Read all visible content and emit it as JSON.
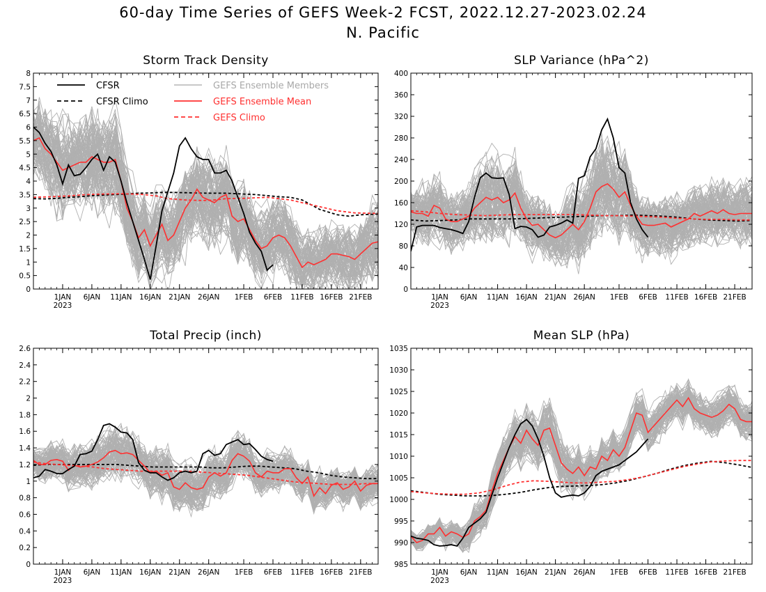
{
  "header": {
    "title": "60-day Time Series of GEFS Week-2 FCST, 2022.12.27-2023.02.24",
    "subtitle": "N. Pacific"
  },
  "legend": {
    "cfsr": "CFSR",
    "cfsr_climo": "CFSR Climo",
    "members": "GEFS Ensemble Members",
    "mean": "GEFS Ensemble Mean",
    "gefs_climo": "GEFS Climo"
  },
  "colors": {
    "cfsr": "#000000",
    "members": "#a8a8a8",
    "mean": "#ff3030",
    "gefs_climo": "#ff3030",
    "cfsr_climo": "#000000"
  },
  "x_axis": {
    "start": "2022-12-27",
    "end": "2023-02-24",
    "tick_labels": [
      "1JAN",
      "6JAN",
      "11JAN",
      "16JAN",
      "21JAN",
      "26JAN",
      "1FEB",
      "6FEB",
      "11FEB",
      "16FEB",
      "21FEB"
    ],
    "year_label": "2023"
  },
  "chart_data": [
    {
      "type": "line",
      "title": "Storm Track Density",
      "ylim": [
        0,
        8
      ],
      "yticks": [
        "0",
        "0.5",
        "1",
        "1.5",
        "2",
        "2.5",
        "3",
        "3.5",
        "4",
        "4.5",
        "5",
        "5.5",
        "6",
        "6.5",
        "7",
        "7.5",
        "8"
      ],
      "cfsr_dates": [
        "2022-12-27",
        "2022-12-28",
        "2022-12-29",
        "2022-12-30",
        "2022-12-31",
        "2023-01-01",
        "2023-01-02",
        "2023-01-03",
        "2023-01-04",
        "2023-01-05",
        "2023-01-06",
        "2023-01-07",
        "2023-01-08",
        "2023-01-09",
        "2023-01-10",
        "2023-01-11",
        "2023-01-12",
        "2023-01-13",
        "2023-01-14",
        "2023-01-15",
        "2023-01-16",
        "2023-01-17",
        "2023-01-18",
        "2023-01-19",
        "2023-01-20",
        "2023-01-21",
        "2023-01-22",
        "2023-01-23",
        "2023-01-24",
        "2023-01-25",
        "2023-01-26",
        "2023-01-27",
        "2023-01-28",
        "2023-01-29",
        "2023-01-30",
        "2023-01-31",
        "2023-02-01",
        "2023-02-02",
        "2023-02-03",
        "2023-02-04",
        "2023-02-05",
        "2023-02-06",
        "2023-02-07",
        "2023-02-08"
      ],
      "cfsr": [
        6.0,
        5.8,
        5.4,
        5.1,
        4.6,
        3.9,
        4.6,
        4.2,
        4.25,
        4.5,
        4.8,
        5.0,
        4.4,
        4.9,
        4.7,
        4.0,
        3.2,
        2.5,
        1.8,
        1.1,
        0.35,
        1.6,
        2.9,
        3.6,
        4.3,
        5.3,
        5.6,
        5.2,
        4.9,
        4.8,
        4.8,
        4.3,
        4.3,
        4.4,
        4.0,
        3.4,
        2.8,
        2.1,
        1.7,
        1.4,
        0.7,
        0.9,
        null,
        null
      ],
      "mean_dates": [
        "2022-12-27",
        "2022-12-28",
        "2022-12-29",
        "2022-12-30",
        "2022-12-31",
        "2023-01-01",
        "2023-01-02",
        "2023-01-03",
        "2023-01-04",
        "2023-01-05",
        "2023-01-06",
        "2023-01-07",
        "2023-01-08",
        "2023-01-09",
        "2023-01-10",
        "2023-01-11",
        "2023-01-12",
        "2023-01-13",
        "2023-01-14",
        "2023-01-15",
        "2023-01-16",
        "2023-01-17",
        "2023-01-18",
        "2023-01-19",
        "2023-01-20",
        "2023-01-21",
        "2023-01-22",
        "2023-01-23",
        "2023-01-24",
        "2023-01-25",
        "2023-01-26",
        "2023-01-27",
        "2023-01-28",
        "2023-01-29",
        "2023-01-30",
        "2023-01-31",
        "2023-02-01",
        "2023-02-02",
        "2023-02-03",
        "2023-02-04",
        "2023-02-05",
        "2023-02-06",
        "2023-02-07",
        "2023-02-08",
        "2023-02-09",
        "2023-02-10",
        "2023-02-11",
        "2023-02-12",
        "2023-02-13",
        "2023-02-14",
        "2023-02-15",
        "2023-02-16",
        "2023-02-17",
        "2023-02-18",
        "2023-02-19",
        "2023-02-20",
        "2023-02-21",
        "2023-02-22",
        "2023-02-23",
        "2023-02-24"
      ],
      "mean": [
        5.5,
        5.6,
        5.2,
        5.0,
        4.7,
        4.4,
        4.5,
        4.6,
        4.7,
        4.7,
        4.9,
        4.8,
        4.7,
        4.7,
        4.8,
        4.0,
        3.0,
        2.5,
        1.9,
        2.2,
        1.6,
        2.0,
        2.4,
        1.8,
        2.0,
        2.5,
        3.0,
        3.3,
        3.7,
        3.4,
        3.3,
        3.2,
        3.4,
        3.5,
        2.7,
        2.5,
        2.6,
        2.2,
        1.8,
        1.5,
        1.6,
        1.9,
        2.0,
        1.9,
        1.6,
        1.2,
        0.8,
        1.0,
        0.9,
        1.0,
        1.1,
        1.3,
        1.3,
        1.25,
        1.2,
        1.1,
        1.3,
        1.5,
        1.7,
        1.75
      ],
      "cfsr_climo": [
        3.35,
        3.34,
        3.36,
        3.4,
        3.42,
        3.46,
        3.48,
        3.5,
        3.52,
        3.55,
        3.56,
        3.58,
        3.58,
        3.57,
        3.56,
        3.55,
        3.55,
        3.52,
        3.5,
        3.46,
        3.42,
        3.4,
        3.3,
        2.95,
        2.75,
        2.7,
        2.75,
        2.78
      ],
      "cfsr_climo_dates": [
        "2022-12-27",
        "2022-12-29",
        "2022-12-31",
        "2023-01-02",
        "2023-01-04",
        "2023-01-06",
        "2023-01-08",
        "2023-01-10",
        "2023-01-12",
        "2023-01-14",
        "2023-01-16",
        "2023-01-18",
        "2023-01-20",
        "2023-01-22",
        "2023-01-24",
        "2023-01-26",
        "2023-01-29",
        "2023-02-01",
        "2023-02-03",
        "2023-02-05",
        "2023-02-07",
        "2023-02-09",
        "2023-02-11",
        "2023-02-14",
        "2023-02-17",
        "2023-02-19",
        "2023-02-21",
        "2023-02-24"
      ],
      "gefs_climo": [
        3.4,
        3.42,
        3.45,
        3.5,
        3.52,
        3.53,
        3.52,
        3.5,
        3.45,
        3.35,
        3.3,
        3.28,
        3.3,
        3.35,
        3.36,
        3.38,
        3.4,
        3.35,
        3.3,
        3.2,
        3.05,
        2.9,
        2.82,
        2.8
      ],
      "gefs_climo_dates": [
        "2022-12-27",
        "2022-12-30",
        "2023-01-02",
        "2023-01-05",
        "2023-01-08",
        "2023-01-11",
        "2023-01-13",
        "2023-01-15",
        "2023-01-17",
        "2023-01-19",
        "2023-01-22",
        "2023-01-25",
        "2023-01-27",
        "2023-01-29",
        "2023-02-01",
        "2023-02-03",
        "2023-02-05",
        "2023-02-07",
        "2023-02-09",
        "2023-02-11",
        "2023-02-14",
        "2023-02-17",
        "2023-02-20",
        "2023-02-24"
      ],
      "members_spread": [
        2.4,
        2.6,
        2.6,
        2.6,
        2.6,
        2.8,
        2.9,
        2.8,
        2.8,
        2.9,
        2.9,
        3.0,
        3.0,
        2.9,
        2.9,
        2.7,
        2.6,
        2.5,
        2.4,
        2.5,
        2.3,
        2.4,
        2.4,
        2.3,
        2.4,
        2.6,
        2.6,
        2.6,
        2.7,
        2.6,
        2.6,
        2.6,
        2.6,
        2.6,
        2.6,
        2.6,
        2.5,
        2.4,
        2.2,
        2.1,
        2.1,
        2.2,
        2.2,
        2.2,
        2.1,
        1.9,
        1.6,
        1.7,
        1.7,
        1.7,
        1.8,
        1.9,
        1.9,
        1.9,
        1.9,
        1.8,
        2.0,
        2.1,
        2.2,
        2.3
      ]
    },
    {
      "type": "line",
      "title": "SLP Variance (hPa^2)",
      "ylim": [
        0,
        400
      ],
      "yticks": [
        "0",
        "40",
        "80",
        "120",
        "160",
        "200",
        "240",
        "280",
        "320",
        "360",
        "400"
      ],
      "cfsr": [
        70,
        115,
        118,
        118,
        118,
        114,
        112,
        110,
        107,
        103,
        125,
        170,
        206,
        215,
        206,
        205,
        206,
        175,
        112,
        116,
        115,
        110,
        96,
        100,
        115,
        118,
        122,
        128,
        122,
        205,
        210,
        245,
        260,
        295,
        315,
        280,
        225,
        215,
        160,
        130,
        110,
        96,
        null,
        null
      ],
      "mean": [
        143,
        140,
        140,
        135,
        155,
        150,
        130,
        125,
        125,
        130,
        135,
        150,
        160,
        170,
        165,
        170,
        160,
        165,
        178,
        150,
        130,
        118,
        120,
        110,
        100,
        95,
        100,
        110,
        120,
        110,
        125,
        150,
        180,
        190,
        195,
        185,
        170,
        180,
        155,
        135,
        120,
        118,
        118,
        120,
        122,
        115,
        120,
        125,
        130,
        140,
        135,
        140,
        145,
        140,
        147,
        140,
        138,
        140,
        140,
        140
      ],
      "cfsr_climo": [
        128,
        126,
        127,
        128,
        130,
        130,
        130,
        130,
        131,
        132,
        133,
        134,
        135,
        136,
        136,
        137,
        136,
        135,
        133,
        130,
        128,
        127,
        126,
        127
      ],
      "gefs_climo": [
        145,
        143,
        140,
        138,
        137,
        136,
        137,
        138,
        138,
        138,
        138,
        138,
        137,
        136,
        136,
        135,
        134,
        133,
        131,
        130,
        129,
        129,
        128,
        128
      ],
      "members_spread": [
        70,
        75,
        80,
        90,
        90,
        95,
        95,
        85,
        80,
        80,
        90,
        110,
        120,
        125,
        120,
        120,
        110,
        110,
        115,
        100,
        95,
        90,
        85,
        85,
        85,
        80,
        85,
        100,
        110,
        115,
        120,
        130,
        140,
        145,
        140,
        130,
        130,
        120,
        110,
        95,
        90,
        88,
        85,
        85,
        85,
        85,
        85,
        85,
        90,
        90,
        90,
        90,
        95,
        95,
        95,
        90,
        90,
        95,
        95,
        95
      ]
    },
    {
      "type": "line",
      "title": "Total Precip (inch)",
      "ylim": [
        0,
        2.6
      ],
      "yticks": [
        "0",
        "0.2",
        "0.4",
        "0.6",
        "0.8",
        "1",
        "1.2",
        "1.4",
        "1.6",
        "1.8",
        "2",
        "2.2",
        "2.4",
        "2.6"
      ],
      "cfsr": [
        1.04,
        1.06,
        1.14,
        1.12,
        1.09,
        1.09,
        1.14,
        1.18,
        1.32,
        1.33,
        1.36,
        1.5,
        1.67,
        1.69,
        1.65,
        1.59,
        1.58,
        1.5,
        1.22,
        1.13,
        1.1,
        1.1,
        1.05,
        1.01,
        1.04,
        1.1,
        1.12,
        1.1,
        1.12,
        1.33,
        1.37,
        1.31,
        1.33,
        1.44,
        1.47,
        1.5,
        1.44,
        1.45,
        1.38,
        1.3,
        1.26,
        1.24,
        null,
        null
      ],
      "mean": [
        1.25,
        1.2,
        1.2,
        1.25,
        1.26,
        1.24,
        1.13,
        1.19,
        1.17,
        1.18,
        1.2,
        1.23,
        1.28,
        1.35,
        1.37,
        1.33,
        1.34,
        1.32,
        1.25,
        1.18,
        1.1,
        1.12,
        1.07,
        1.1,
        0.93,
        0.9,
        0.98,
        0.92,
        0.9,
        0.92,
        1.05,
        1.1,
        1.06,
        1.1,
        1.25,
        1.33,
        1.3,
        1.24,
        1.1,
        1.05,
        1.12,
        1.1,
        1.1,
        1.15,
        1.15,
        1.04,
        0.97,
        1.05,
        0.82,
        0.92,
        0.85,
        0.95,
        0.98,
        0.9,
        0.93,
        1.0,
        0.88,
        0.95,
        0.97,
        0.97
      ],
      "cfsr_climo": [
        1.19,
        1.2,
        1.2,
        1.2,
        1.2,
        1.2,
        1.2,
        1.2,
        1.19,
        1.18,
        1.17,
        1.17,
        1.17,
        1.17,
        1.17,
        1.16,
        1.16,
        1.17,
        1.18,
        1.18,
        1.17,
        1.16,
        1.15,
        1.12,
        1.1,
        1.07,
        1.05,
        1.04,
        1.03,
        1.03
      ],
      "gefs_climo": [
        1.23,
        1.21,
        1.2,
        1.19,
        1.18,
        1.17,
        1.15,
        1.14,
        1.13,
        1.12,
        1.12,
        1.12,
        1.12,
        1.12,
        1.11,
        1.1,
        1.09,
        1.08,
        1.07,
        1.05,
        1.03,
        1.01,
        0.99,
        0.98,
        0.97,
        0.96,
        0.96,
        0.96,
        0.97,
        0.97
      ],
      "members_spread": [
        0.35,
        0.33,
        0.35,
        0.38,
        0.38,
        0.4,
        0.4,
        0.42,
        0.42,
        0.43,
        0.45,
        0.45,
        0.45,
        0.45,
        0.45,
        0.45,
        0.45,
        0.42,
        0.42,
        0.42,
        0.44,
        0.45,
        0.48,
        0.5,
        0.48,
        0.45,
        0.42,
        0.42,
        0.42,
        0.45,
        0.45,
        0.45,
        0.45,
        0.45,
        0.45,
        0.45,
        0.42,
        0.4,
        0.38,
        0.36,
        0.36,
        0.35,
        0.35,
        0.35,
        0.35,
        0.35,
        0.35,
        0.33,
        0.33,
        0.33,
        0.33,
        0.33,
        0.33,
        0.33,
        0.33,
        0.33,
        0.33,
        0.33,
        0.33,
        0.33
      ]
    },
    {
      "type": "line",
      "title": "Mean SLP (hPa)",
      "ylim": [
        985,
        1035
      ],
      "yticks": [
        "985",
        "990",
        "995",
        "1000",
        "1005",
        "1010",
        "1015",
        "1020",
        "1025",
        "1030",
        "1035"
      ],
      "cfsr": [
        991.5,
        991,
        990.8,
        990.5,
        989.5,
        989.2,
        989.3,
        989.5,
        989.2,
        991,
        993.5,
        994.5,
        995.5,
        997,
        1001,
        1005,
        1008.5,
        1012,
        1015,
        1017.5,
        1018.5,
        1017,
        1014,
        1010,
        1005,
        1001.5,
        1000.5,
        1000.8,
        1001,
        1000.8,
        1001.5,
        1003,
        1005.5,
        1006.5,
        1007,
        1007.5,
        1008,
        1009,
        1010,
        1011,
        1012.5,
        1014,
        null,
        null
      ],
      "mean": [
        991.5,
        990,
        990.5,
        992,
        992,
        993.5,
        991.5,
        992.5,
        992,
        991.2,
        992,
        995,
        996,
        997.5,
        1002,
        1006,
        1009,
        1012,
        1014.5,
        1013,
        1016,
        1014,
        1012.5,
        1016,
        1016.5,
        1012.5,
        1008.5,
        1007,
        1006,
        1007.5,
        1005.5,
        1007.5,
        1007,
        1010,
        1009,
        1011.5,
        1010,
        1012,
        1016,
        1020,
        1019.5,
        1015.5,
        1017,
        1018.5,
        1020,
        1021.5,
        1023,
        1021.5,
        1023.5,
        1021,
        1020,
        1019.5,
        1019,
        1019.5,
        1020.5,
        1022,
        1021,
        1018.5,
        1018,
        1018
      ],
      "cfsr_climo": [
        1002,
        1001.6,
        1001.2,
        1001,
        1000.8,
        1000.8,
        1000.9,
        1001.2,
        1001.6,
        1002.2,
        1002.7,
        1003,
        1003.1,
        1003.2,
        1003.4,
        1003.8,
        1004.4,
        1005.2,
        1006,
        1007,
        1007.8,
        1008.4,
        1008.8,
        1008.5,
        1008,
        1007.4
      ],
      "gefs_climo": [
        1001.8,
        1001.5,
        1001.3,
        1001.2,
        1001.2,
        1001.5,
        1002.2,
        1003.2,
        1004,
        1004.3,
        1004.2,
        1004,
        1003.8,
        1003.8,
        1004,
        1004.2,
        1004.6,
        1005.2,
        1006,
        1006.8,
        1007.6,
        1008.2,
        1008.7,
        1008.9,
        1009,
        1009
      ],
      "members_spread": [
        3,
        3,
        3.2,
        3.5,
        3.8,
        4,
        4.2,
        4.5,
        4.8,
        5,
        5.5,
        6,
        6.5,
        7,
        7.5,
        8,
        8.5,
        9,
        9.5,
        10,
        10,
        10,
        10,
        10,
        10,
        9.5,
        9,
        8.5,
        8,
        7.5,
        7,
        7,
        7,
        7,
        7,
        7,
        7,
        7,
        7,
        7,
        7,
        7,
        7,
        7,
        7,
        7,
        7,
        7,
        7,
        7,
        7,
        7,
        7,
        7,
        7,
        7,
        7,
        7,
        7,
        7
      ]
    }
  ]
}
